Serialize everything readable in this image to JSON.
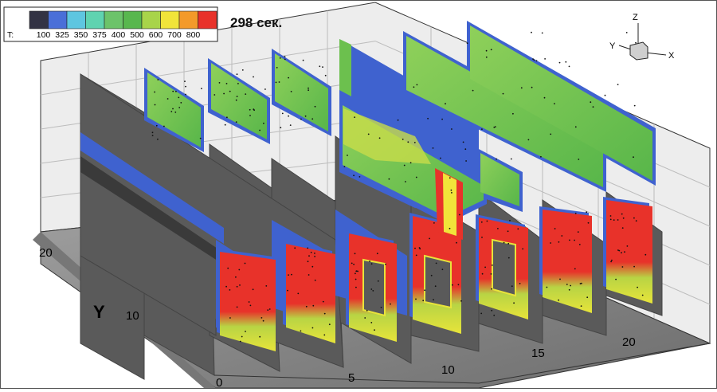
{
  "time_label": "298 сек.",
  "legend": {
    "prefix": "T:",
    "levels": [
      "100",
      "325",
      "350",
      "375",
      "400",
      "500",
      "600",
      "700",
      "800"
    ],
    "colors": [
      "#4a6fd8",
      "#5ec6e0",
      "#5fd3b0",
      "#6cc36a",
      "#58b74e",
      "#a8d44a",
      "#f1e43a",
      "#f39a2a",
      "#e8322a"
    ]
  },
  "axes": {
    "z_label": "Z",
    "y_label": "Y",
    "x_label": "X",
    "y_axis_title": "Y",
    "y_ticks": [
      "0",
      "10",
      "20"
    ],
    "x_ticks": [
      "5",
      "10",
      "15",
      "20"
    ]
  },
  "colors": {
    "wall": "#5a5a5a",
    "wall_edge": "#444444",
    "floor": "#8a8a8a",
    "back_wall": "#ececec",
    "blue": "#3f62cf",
    "green": "#6cc04e",
    "yellow": "#e8e43a",
    "red": "#e8322a"
  }
}
